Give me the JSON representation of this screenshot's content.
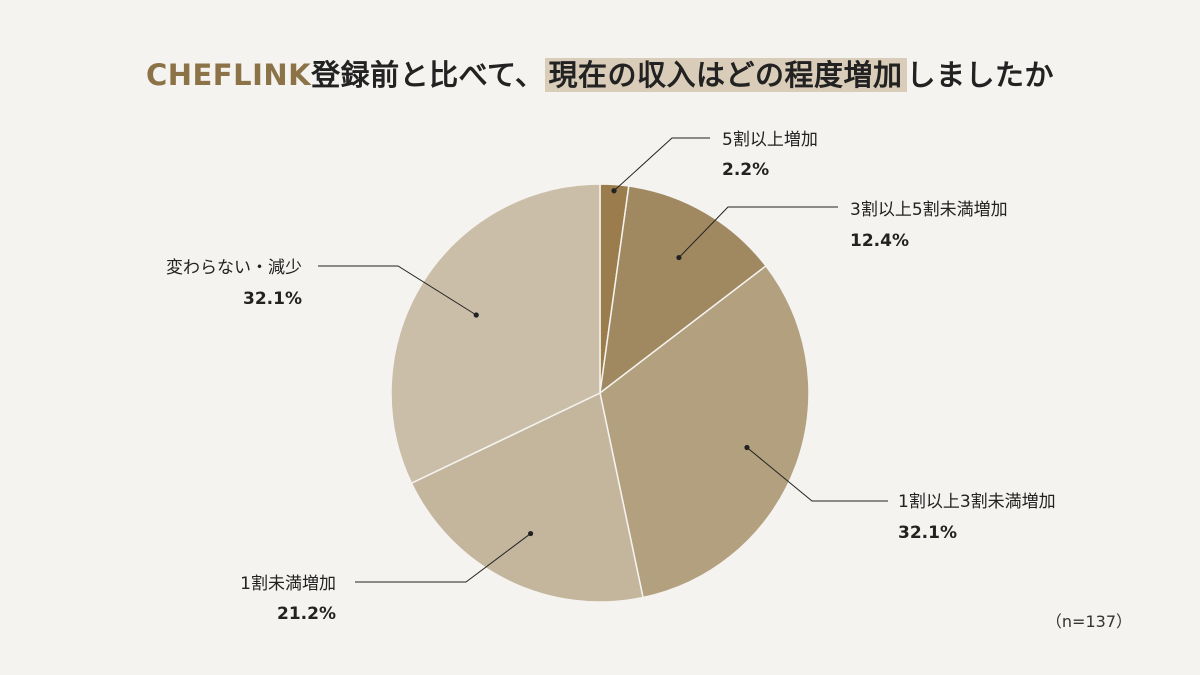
{
  "title": {
    "brand": "CHEFLINK",
    "part1": "登録前と比べて、",
    "highlight": "現在の収入はどの程度増加",
    "part2": "しましたか"
  },
  "sample_note": "（n=137）",
  "chart_data": {
    "type": "pie",
    "title": "CHEFLINK登録前と比べて、現在の収入はどの程度増加しましたか",
    "start_angle": "12 o'clock",
    "direction": "clockwise",
    "slices": [
      {
        "label": "5割以上増加",
        "value": 2.2,
        "display": "2.2%",
        "color": "#9b7c4c"
      },
      {
        "label": "3割以上5割未満増加",
        "value": 12.4,
        "display": "12.4%",
        "color": "#a08960"
      },
      {
        "label": "1割以上3割未満増加",
        "value": 32.1,
        "display": "32.1%",
        "color": "#b2a07f"
      },
      {
        "label": "1割未満増加",
        "value": 21.2,
        "display": "21.2%",
        "color": "#c4b59d"
      },
      {
        "label": "変わらない・減少",
        "value": 32.1,
        "display": "32.1%",
        "color": "#cbbea9"
      }
    ]
  }
}
